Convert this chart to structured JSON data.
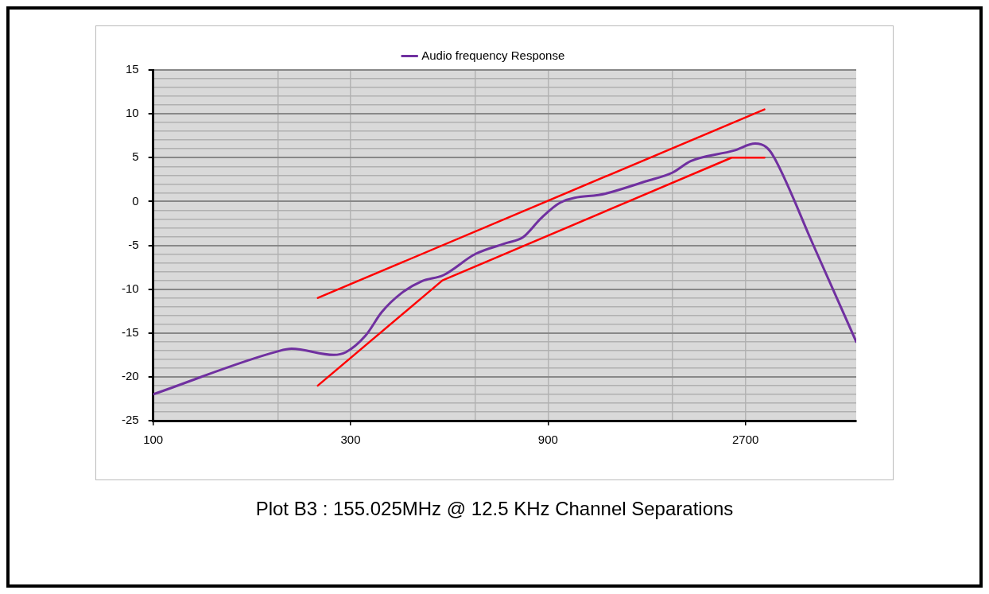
{
  "chart_data": {
    "type": "line",
    "annotations": [
      "Plot B3 : 155.025MHz @ 12.5 KHz Channel Separations"
    ],
    "log": "x",
    "grid": true,
    "legend": "top",
    "marker": "none",
    "line_style": "solid",
    "xlim": [
      100,
      5000
    ],
    "xticks": [
      100,
      {
        "value": 200,
        "label": null
      },
      300,
      {
        "value": 600,
        "label": null
      },
      900,
      {
        "value": 1800,
        "label": null
      },
      2700
    ],
    "ylim": [
      -25,
      15
    ],
    "yticks": [
      -25,
      {
        "value": -24,
        "label": null
      },
      {
        "value": -23,
        "label": null
      },
      {
        "value": -22,
        "label": null
      },
      {
        "value": -21,
        "label": null
      },
      -20,
      {
        "value": -19,
        "label": null
      },
      {
        "value": -18,
        "label": null
      },
      {
        "value": -17,
        "label": null
      },
      {
        "value": -16,
        "label": null
      },
      -15,
      {
        "value": -14,
        "label": null
      },
      {
        "value": -13,
        "label": null
      },
      {
        "value": -12,
        "label": null
      },
      {
        "value": -11,
        "label": null
      },
      -10,
      {
        "value": -9,
        "label": null
      },
      {
        "value": -8,
        "label": null
      },
      {
        "value": -7,
        "label": null
      },
      {
        "value": -6,
        "label": null
      },
      -5,
      {
        "value": -4,
        "label": null
      },
      {
        "value": -3,
        "label": null
      },
      {
        "value": -2,
        "label": null
      },
      {
        "value": -1,
        "label": null
      },
      0,
      {
        "value": 1,
        "label": null
      },
      {
        "value": 2,
        "label": null
      },
      {
        "value": 3,
        "label": null
      },
      {
        "value": 4,
        "label": null
      },
      5,
      {
        "value": 6,
        "label": null
      },
      {
        "value": 7,
        "label": null
      },
      {
        "value": 8,
        "label": null
      },
      {
        "value": 9,
        "label": null
      },
      10,
      {
        "value": 11,
        "label": null
      },
      {
        "value": 12,
        "label": null
      },
      {
        "value": 13,
        "label": null
      },
      {
        "value": 14,
        "label": null
      },
      15
    ],
    "series": [
      {
        "name": "Audio frequency Response",
        "color": "#7030a0",
        "x": [
          100,
          200,
          216,
          273,
          292,
          326,
          357,
          397,
          446,
          503,
          600,
          719,
          782,
          866,
          966,
          1240,
          1550,
          1800,
          1990,
          2530,
          2850,
          3030,
          3160,
          3940,
          5000
        ],
        "values": [
          -22,
          -17.1,
          -16.8,
          -17.5,
          -17.2,
          -15.3,
          -12.6,
          -10.5,
          -9.1,
          -8.4,
          -6,
          -4.7,
          -4.1,
          -1.9,
          -0.1,
          0.9,
          2.3,
          3.3,
          4.6,
          5.8,
          6.6,
          6.2,
          5.1,
          -5,
          -16
        ]
      },
      {
        "color": "#ff0000",
        "x": [
          250,
          3000
        ],
        "values": [
          -11,
          10.5
        ]
      },
      {
        "color": "#ff0000",
        "x": [
          250,
          500,
          2500,
          3000
        ],
        "values": [
          -21,
          -9,
          5,
          5
        ]
      }
    ]
  }
}
